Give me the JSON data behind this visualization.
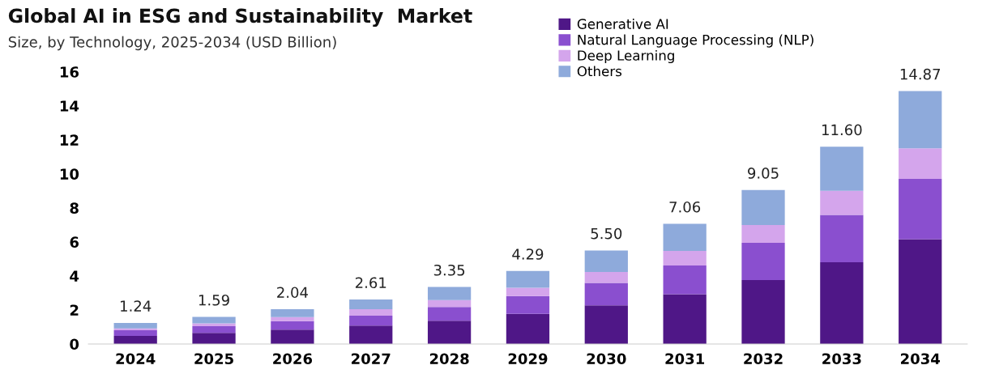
{
  "chart_data": {
    "type": "bar",
    "title": "Global AI in ESG and Sustainability  Market",
    "subtitle": "Size, by Technology, 2025-2034 (USD Billion)",
    "categories": [
      "2024",
      "2025",
      "2026",
      "2027",
      "2028",
      "2029",
      "2030",
      "2031",
      "2032",
      "2033",
      "2034"
    ],
    "stacked": true,
    "series": [
      {
        "name": "Generative AI",
        "color": "#4f1787",
        "values": [
          0.48,
          0.65,
          0.84,
          1.08,
          1.37,
          1.77,
          2.27,
          2.93,
          3.76,
          4.81,
          6.16
        ]
      },
      {
        "name": "Natural Language Processing (NLP)",
        "color": "#8a4fcf",
        "values": [
          0.33,
          0.4,
          0.5,
          0.58,
          0.8,
          1.05,
          1.32,
          1.69,
          2.19,
          2.78,
          3.54
        ]
      },
      {
        "name": "Deep Learning",
        "color": "#d4a5ec",
        "values": [
          0.11,
          0.16,
          0.24,
          0.39,
          0.41,
          0.48,
          0.64,
          0.85,
          1.04,
          1.41,
          1.8
        ]
      },
      {
        "name": "Others",
        "color": "#8eaadb",
        "values": [
          0.32,
          0.38,
          0.46,
          0.56,
          0.77,
          0.99,
          1.27,
          1.59,
          2.06,
          2.6,
          3.37
        ]
      }
    ],
    "totals": [
      "1.24",
      "1.59",
      "2.04",
      "2.61",
      "3.35",
      "4.29",
      "5.50",
      "7.06",
      "9.05",
      "11.60",
      "14.87"
    ],
    "ylim": [
      0,
      16
    ],
    "yticks": [
      0,
      2,
      4,
      6,
      8,
      10,
      12,
      14,
      16
    ],
    "grid": false,
    "legend": "top right"
  }
}
